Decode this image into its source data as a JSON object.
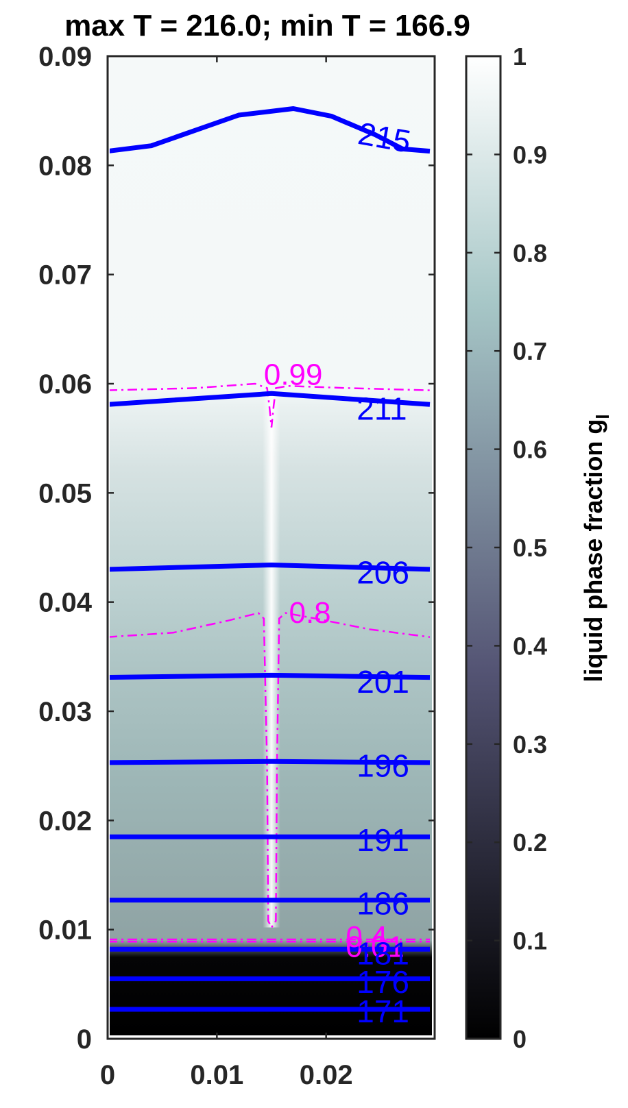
{
  "chart_data": {
    "type": "contour",
    "title": "max T = 216.0; min T = 166.9",
    "xlim": [
      0,
      0.03
    ],
    "ylim": [
      0,
      0.09
    ],
    "xticks": [
      "0",
      "0.01",
      "0.02"
    ],
    "yticks": [
      "0",
      "0.01",
      "0.02",
      "0.03",
      "0.04",
      "0.05",
      "0.06",
      "0.07",
      "0.08",
      "0.09"
    ],
    "colorbar": {
      "label": "liquid phase fraction g",
      "label_subscript": "l",
      "range": [
        0,
        1
      ],
      "ticks": [
        "0",
        "0.1",
        "0.2",
        "0.3",
        "0.4",
        "0.5",
        "0.6",
        "0.7",
        "0.8",
        "0.9",
        "1"
      ],
      "colormap": "bone"
    },
    "temperature_contours": {
      "color": "#0000ff",
      "levels": [
        {
          "label": "171",
          "label_x": 0.0228,
          "label_y": 0.0025,
          "points": [
            [
              0,
              0.0027
            ],
            [
              0.0295,
              0.0027
            ]
          ]
        },
        {
          "label": "176",
          "label_x": 0.0228,
          "label_y": 0.0052,
          "points": [
            [
              0,
              0.0055
            ],
            [
              0.0295,
              0.0055
            ]
          ]
        },
        {
          "label": "181",
          "label_x": 0.0228,
          "label_y": 0.0078,
          "points": [
            [
              0,
              0.0082
            ],
            [
              0.0295,
              0.0082
            ]
          ]
        },
        {
          "label": "186",
          "label_x": 0.0228,
          "label_y": 0.0124,
          "points": [
            [
              0,
              0.0127
            ],
            [
              0.0295,
              0.0127
            ]
          ]
        },
        {
          "label": "191",
          "label_x": 0.0228,
          "label_y": 0.0182,
          "points": [
            [
              0,
              0.0185
            ],
            [
              0.0295,
              0.0185
            ]
          ]
        },
        {
          "label": "196",
          "label_x": 0.0228,
          "label_y": 0.025,
          "points": [
            [
              0,
              0.0253
            ],
            [
              0.015,
              0.0254
            ],
            [
              0.0295,
              0.0253
            ]
          ]
        },
        {
          "label": "201",
          "label_x": 0.0228,
          "label_y": 0.0327,
          "points": [
            [
              0,
              0.0331
            ],
            [
              0.015,
              0.0333
            ],
            [
              0.0295,
              0.0331
            ]
          ]
        },
        {
          "label": "206",
          "label_x": 0.0228,
          "label_y": 0.0427,
          "points": [
            [
              0,
              0.043
            ],
            [
              0.015,
              0.0434
            ],
            [
              0.0295,
              0.043
            ]
          ]
        },
        {
          "label": "211",
          "label_x": 0.0228,
          "label_y": 0.0577,
          "points": [
            [
              0,
              0.0581
            ],
            [
              0.015,
              0.0591
            ],
            [
              0.0295,
              0.0581
            ]
          ]
        },
        {
          "label": "215",
          "label_x": 0.0228,
          "label_y": 0.083,
          "points": [
            [
              0,
              0.0813
            ],
            [
              0.004,
              0.0818
            ],
            [
              0.008,
              0.0832
            ],
            [
              0.012,
              0.0846
            ],
            [
              0.017,
              0.0852
            ],
            [
              0.0205,
              0.0845
            ],
            [
              0.0245,
              0.0828
            ],
            [
              0.027,
              0.0815
            ],
            [
              0.0295,
              0.0813
            ]
          ]
        }
      ]
    },
    "liquid_fraction_contours": {
      "color": "#ff00ff",
      "style": "dash-dot",
      "levels": [
        {
          "label": "0.01",
          "label_x": 0.0218,
          "label_y": 0.0075,
          "points": [
            [
              0,
              0.0089
            ],
            [
              0.0295,
              0.0089
            ]
          ]
        },
        {
          "label": "0.4",
          "label_x": 0.0218,
          "label_y": 0.0084,
          "points": [
            [
              0,
              0.0091
            ],
            [
              0.0295,
              0.0091
            ]
          ]
        },
        {
          "label": "0.8",
          "label_x": 0.0166,
          "label_y": 0.0381,
          "points": [
            [
              0,
              0.0368
            ],
            [
              0.006,
              0.0372
            ],
            [
              0.011,
              0.0383
            ],
            [
              0.0138,
              0.039
            ],
            [
              0.0143,
              0.0385
            ],
            [
              0.0146,
              0.025
            ],
            [
              0.0147,
              0.0108
            ],
            [
              0.015,
              0.0102
            ],
            [
              0.0154,
              0.0108
            ],
            [
              0.0155,
              0.025
            ],
            [
              0.0157,
              0.0385
            ],
            [
              0.0163,
              0.039
            ],
            [
              0.019,
              0.0385
            ],
            [
              0.024,
              0.0375
            ],
            [
              0.0295,
              0.0368
            ]
          ]
        },
        {
          "label": "0.99",
          "label_x": 0.0143,
          "label_y": 0.0599,
          "points": [
            [
              0,
              0.0594
            ],
            [
              0.008,
              0.0596
            ],
            [
              0.0135,
              0.06
            ],
            [
              0.0146,
              0.0596
            ],
            [
              0.0148,
              0.058
            ],
            [
              0.015,
              0.056
            ],
            [
              0.0152,
              0.058
            ],
            [
              0.0154,
              0.0596
            ],
            [
              0.0165,
              0.0598
            ],
            [
              0.022,
              0.0596
            ],
            [
              0.0295,
              0.0594
            ]
          ]
        }
      ]
    }
  }
}
